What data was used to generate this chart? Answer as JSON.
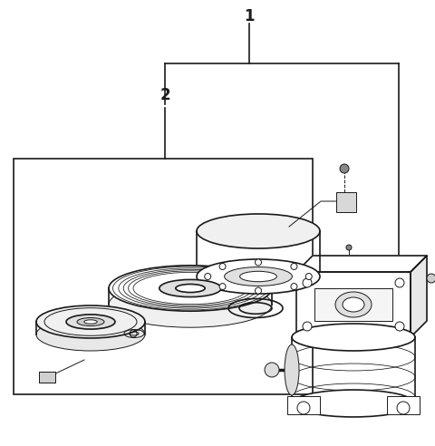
{
  "background_color": "#ffffff",
  "line_color": "#1a1a1a",
  "label_1": "1",
  "label_2": "2",
  "figsize": [
    4.8,
    4.92
  ],
  "dpi": 100
}
